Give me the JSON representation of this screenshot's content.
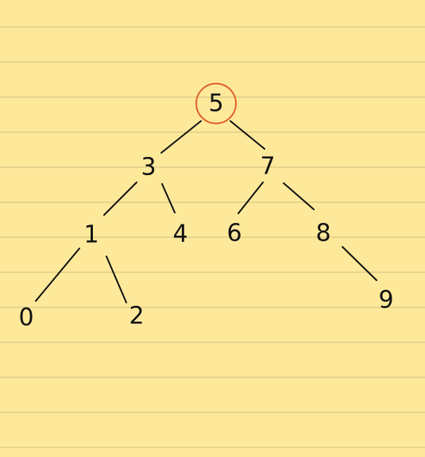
{
  "diagram": {
    "type": "binary-search-tree",
    "highlighted_node": "5",
    "colors": {
      "paper": "#fee99b",
      "rule_line": "#e8d48d",
      "ink": "#111111",
      "highlight": "#e2602a"
    },
    "nodes": [
      {
        "id": "n5",
        "label": "5"
      },
      {
        "id": "n3",
        "label": "3"
      },
      {
        "id": "n7",
        "label": "7"
      },
      {
        "id": "n1",
        "label": "1"
      },
      {
        "id": "n4",
        "label": "4"
      },
      {
        "id": "n6",
        "label": "6"
      },
      {
        "id": "n8",
        "label": "8"
      },
      {
        "id": "n0",
        "label": "0"
      },
      {
        "id": "n2",
        "label": "2"
      },
      {
        "id": "n9",
        "label": "9"
      }
    ],
    "edges": [
      {
        "from": "n5",
        "to": "n3"
      },
      {
        "from": "n5",
        "to": "n7"
      },
      {
        "from": "n3",
        "to": "n1"
      },
      {
        "from": "n3",
        "to": "n4"
      },
      {
        "from": "n7",
        "to": "n6"
      },
      {
        "from": "n7",
        "to": "n8"
      },
      {
        "from": "n1",
        "to": "n0"
      },
      {
        "from": "n1",
        "to": "n2"
      },
      {
        "from": "n8",
        "to": "n9"
      }
    ]
  }
}
